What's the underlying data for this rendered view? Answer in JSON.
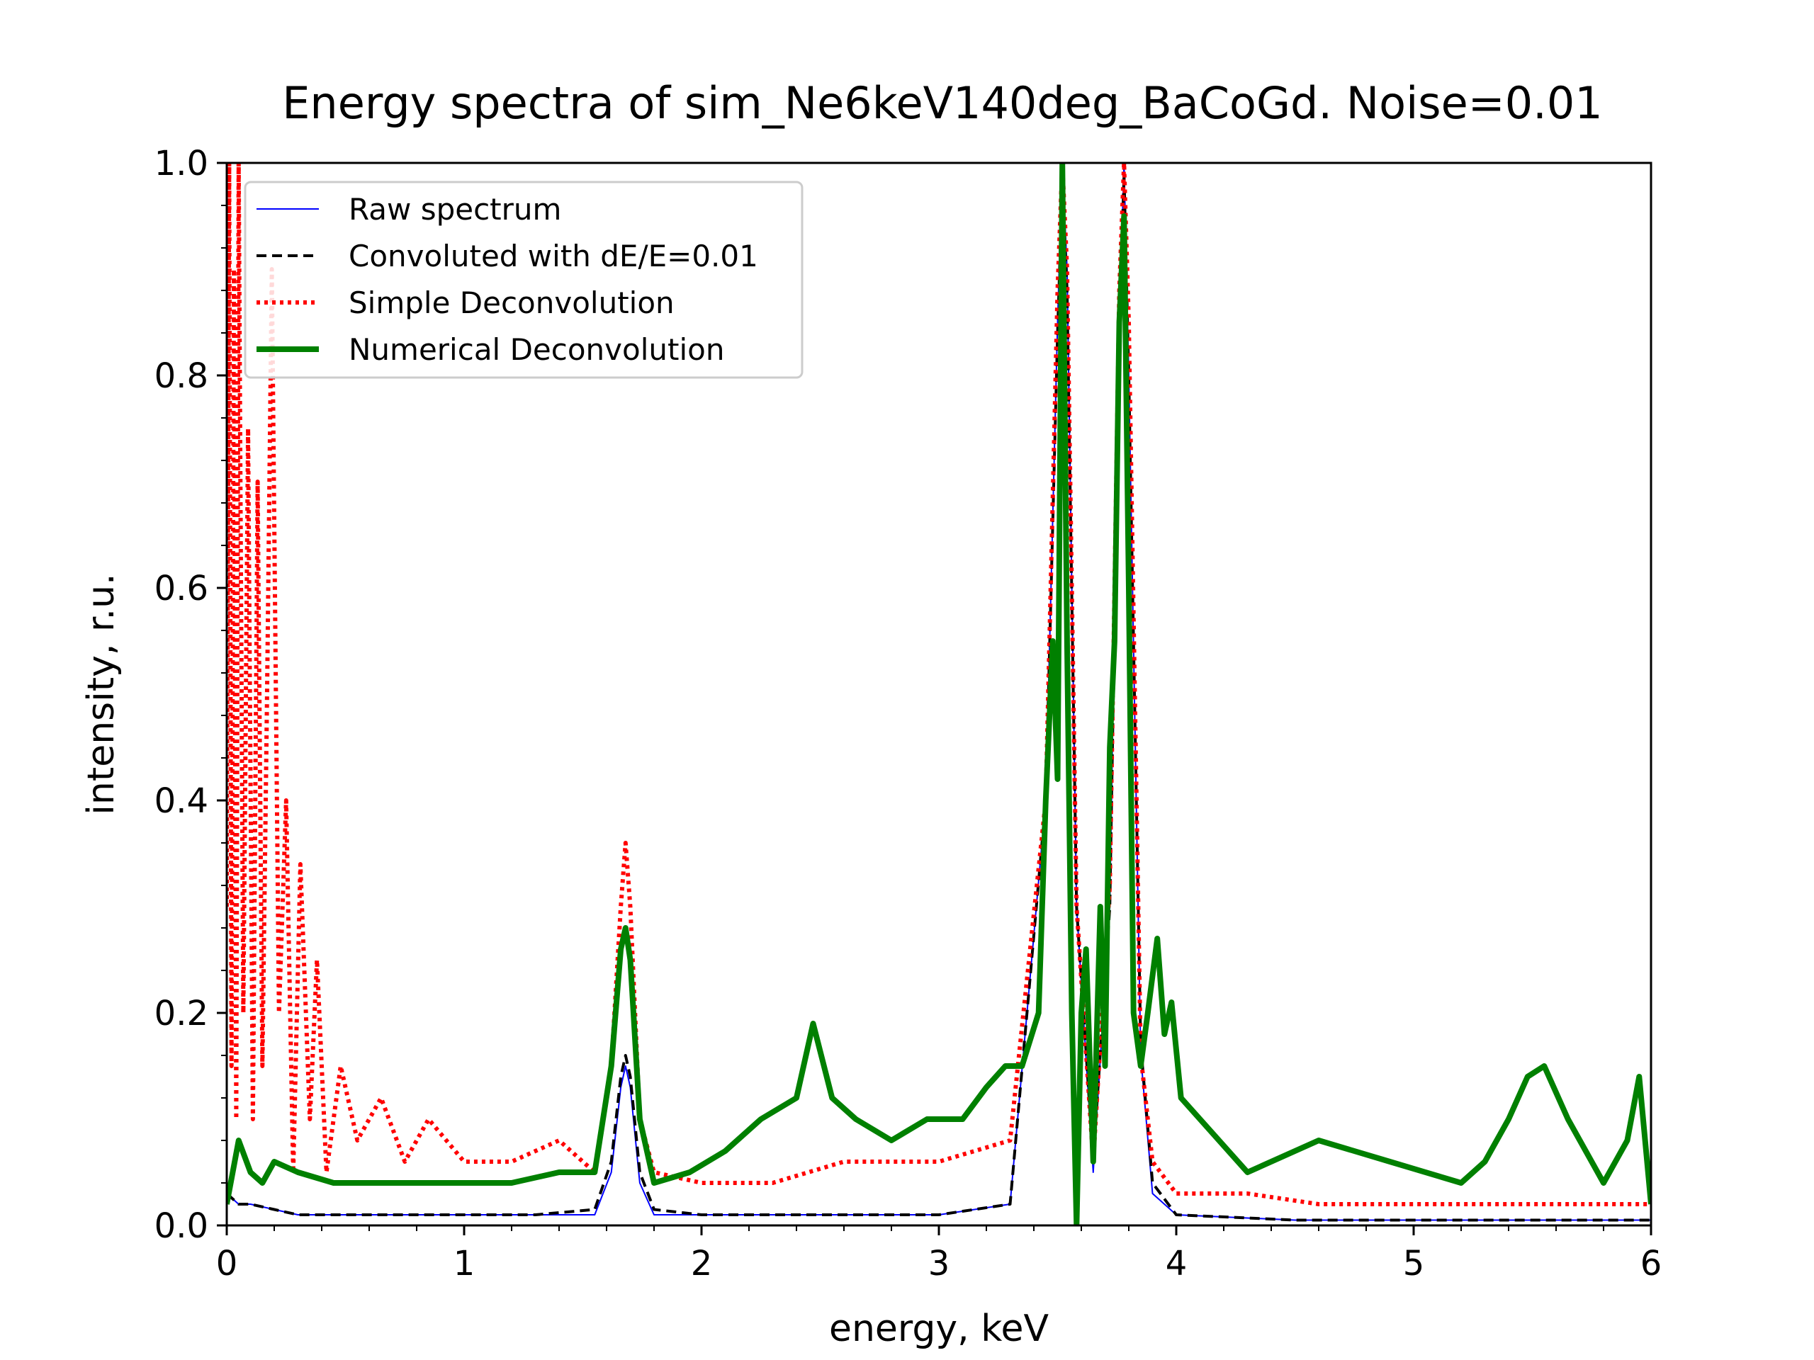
{
  "chart_data": {
    "type": "line",
    "title": "Energy spectra of sim_Ne6keV140deg_BaCoGd. Noise=0.01",
    "xlabel": "energy, keV",
    "ylabel": "intensity, r.u.",
    "xlim": [
      0,
      6
    ],
    "ylim": [
      0,
      1.0
    ],
    "x_ticks": [
      0,
      1,
      2,
      3,
      4,
      5,
      6
    ],
    "x_tick_labels": [
      "0",
      "1",
      "2",
      "3",
      "4",
      "5",
      "6"
    ],
    "y_ticks": [
      0.0,
      0.2,
      0.4,
      0.6,
      0.8,
      1.0
    ],
    "y_tick_labels": [
      "0.0",
      "0.2",
      "0.4",
      "0.6",
      "0.8",
      "1.0"
    ],
    "grid": false,
    "legend_position": "top-left",
    "series": [
      {
        "name": "Raw spectrum",
        "color": "#0000ff",
        "style": "solid-thin",
        "x": [
          0,
          0.05,
          0.1,
          0.2,
          0.3,
          0.5,
          0.8,
          1.0,
          1.3,
          1.55,
          1.62,
          1.66,
          1.68,
          1.7,
          1.74,
          1.8,
          2.0,
          2.5,
          3.0,
          3.3,
          3.45,
          3.5,
          3.52,
          3.54,
          3.58,
          3.65,
          3.72,
          3.76,
          3.78,
          3.8,
          3.85,
          3.9,
          4.0,
          4.5,
          5.0,
          5.5,
          6.0
        ],
        "y": [
          0.03,
          0.02,
          0.02,
          0.015,
          0.01,
          0.01,
          0.01,
          0.01,
          0.01,
          0.01,
          0.05,
          0.13,
          0.15,
          0.13,
          0.04,
          0.01,
          0.01,
          0.01,
          0.01,
          0.02,
          0.4,
          0.85,
          1.0,
          0.9,
          0.3,
          0.05,
          0.3,
          0.85,
          1.0,
          0.8,
          0.16,
          0.03,
          0.01,
          0.005,
          0.005,
          0.005,
          0.005
        ]
      },
      {
        "name": "Convoluted with dE/E=0.01",
        "color": "#000000",
        "style": "dashed",
        "x": [
          0,
          0.05,
          0.1,
          0.2,
          0.3,
          0.5,
          0.8,
          1.0,
          1.3,
          1.55,
          1.62,
          1.66,
          1.68,
          1.7,
          1.74,
          1.8,
          2.0,
          2.5,
          3.0,
          3.3,
          3.45,
          3.5,
          3.52,
          3.54,
          3.58,
          3.65,
          3.72,
          3.76,
          3.78,
          3.8,
          3.85,
          3.9,
          4.0,
          4.5,
          5.0,
          5.5,
          6.0
        ],
        "y": [
          0.03,
          0.02,
          0.02,
          0.015,
          0.01,
          0.01,
          0.01,
          0.01,
          0.01,
          0.015,
          0.06,
          0.14,
          0.16,
          0.14,
          0.05,
          0.015,
          0.01,
          0.01,
          0.01,
          0.02,
          0.4,
          0.84,
          0.98,
          0.88,
          0.3,
          0.06,
          0.3,
          0.84,
          0.99,
          0.8,
          0.17,
          0.04,
          0.01,
          0.005,
          0.005,
          0.005,
          0.005
        ]
      },
      {
        "name": "Simple Deconvolution",
        "color": "#ff0000",
        "style": "dotted",
        "x": [
          0.0,
          0.01,
          0.02,
          0.03,
          0.04,
          0.05,
          0.07,
          0.09,
          0.11,
          0.13,
          0.15,
          0.17,
          0.19,
          0.22,
          0.25,
          0.28,
          0.31,
          0.35,
          0.38,
          0.42,
          0.48,
          0.55,
          0.65,
          0.75,
          0.85,
          1.0,
          1.2,
          1.4,
          1.55,
          1.62,
          1.66,
          1.68,
          1.7,
          1.74,
          1.8,
          2.0,
          2.3,
          2.6,
          3.0,
          3.3,
          3.45,
          3.5,
          3.52,
          3.54,
          3.58,
          3.65,
          3.72,
          3.76,
          3.78,
          3.8,
          3.85,
          3.9,
          4.0,
          4.3,
          4.6,
          5.0,
          5.5,
          6.0
        ],
        "y": [
          0.3,
          1.0,
          0.15,
          0.9,
          0.1,
          1.0,
          0.2,
          0.75,
          0.1,
          0.7,
          0.15,
          0.5,
          0.9,
          0.2,
          0.4,
          0.05,
          0.34,
          0.1,
          0.25,
          0.05,
          0.15,
          0.08,
          0.12,
          0.06,
          0.1,
          0.06,
          0.06,
          0.08,
          0.05,
          0.15,
          0.3,
          0.36,
          0.3,
          0.1,
          0.05,
          0.04,
          0.04,
          0.06,
          0.06,
          0.08,
          0.4,
          0.88,
          1.0,
          0.9,
          0.3,
          0.06,
          0.32,
          0.88,
          1.0,
          0.85,
          0.16,
          0.06,
          0.03,
          0.03,
          0.02,
          0.02,
          0.02,
          0.02
        ]
      },
      {
        "name": "Numerical Deconvolution",
        "color": "#008000",
        "style": "solid-thick",
        "x": [
          0.0,
          0.05,
          0.1,
          0.15,
          0.2,
          0.3,
          0.45,
          0.6,
          0.8,
          1.0,
          1.2,
          1.4,
          1.55,
          1.62,
          1.66,
          1.68,
          1.7,
          1.74,
          1.8,
          1.95,
          2.1,
          2.25,
          2.4,
          2.47,
          2.55,
          2.65,
          2.8,
          2.95,
          3.1,
          3.2,
          3.28,
          3.35,
          3.42,
          3.45,
          3.48,
          3.5,
          3.52,
          3.54,
          3.56,
          3.58,
          3.6,
          3.62,
          3.65,
          3.68,
          3.7,
          3.72,
          3.74,
          3.76,
          3.78,
          3.8,
          3.82,
          3.85,
          3.88,
          3.92,
          3.95,
          3.98,
          4.02,
          4.1,
          4.3,
          4.6,
          4.9,
          5.2,
          5.3,
          5.4,
          5.48,
          5.55,
          5.65,
          5.8,
          5.9,
          5.95,
          6.0
        ],
        "y": [
          0.02,
          0.08,
          0.05,
          0.04,
          0.06,
          0.05,
          0.04,
          0.04,
          0.04,
          0.04,
          0.04,
          0.05,
          0.05,
          0.15,
          0.26,
          0.28,
          0.25,
          0.1,
          0.04,
          0.05,
          0.07,
          0.1,
          0.12,
          0.19,
          0.12,
          0.1,
          0.08,
          0.1,
          0.1,
          0.13,
          0.15,
          0.15,
          0.2,
          0.4,
          0.55,
          0.42,
          1.0,
          0.55,
          0.2,
          0.0,
          0.2,
          0.26,
          0.06,
          0.3,
          0.15,
          0.45,
          0.55,
          0.85,
          0.95,
          0.6,
          0.2,
          0.15,
          0.2,
          0.27,
          0.18,
          0.21,
          0.12,
          0.1,
          0.05,
          0.08,
          0.06,
          0.04,
          0.06,
          0.1,
          0.14,
          0.15,
          0.1,
          0.04,
          0.08,
          0.14,
          0.02
        ]
      }
    ]
  }
}
